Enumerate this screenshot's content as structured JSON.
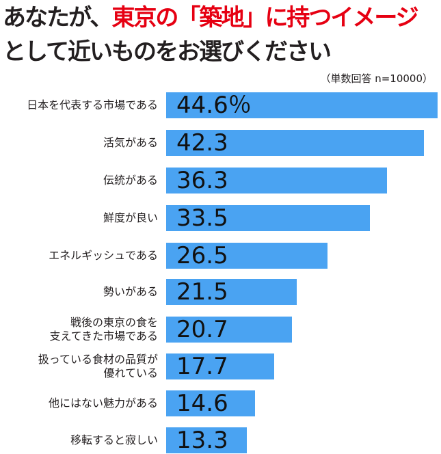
{
  "chart_data": {
    "type": "bar",
    "orientation": "horizontal",
    "title_parts": [
      "あなたが、",
      "東京の「築地」に持つイメージ",
      "として近いものをお選びください"
    ],
    "note": "（単数回答 n=10000）",
    "unit": "％",
    "categories": [
      "日本を代表する市場である",
      "活気がある",
      "伝統がある",
      "鮮度が良い",
      "エネルギッシュである",
      "勢いがある",
      "戦後の東京の食を\n支えてきた市場である",
      "扱っている食材の品質が\n優れている",
      "他にはない魅力がある",
      "移転すると寂しい"
    ],
    "values": [
      44.6,
      42.3,
      36.3,
      33.5,
      26.5,
      21.5,
      20.7,
      17.7,
      14.6,
      13.3
    ],
    "value_labels": [
      "44.6",
      "42.3",
      "36.3",
      "33.5",
      "26.5",
      "21.5",
      "20.7",
      "17.7",
      "14.6",
      "13.3"
    ],
    "colors": {
      "bar": "#4aa3f2",
      "title_accent": "#e60012",
      "title": "#231f20"
    },
    "xlim": [
      0,
      44.6
    ]
  }
}
